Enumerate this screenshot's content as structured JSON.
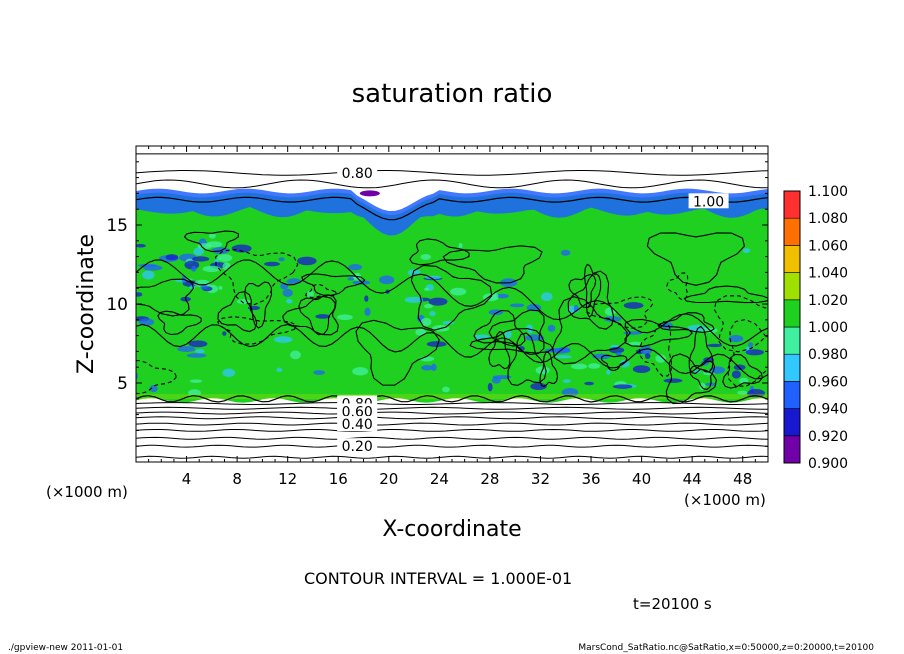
{
  "chart_data": {
    "type": "heatmap",
    "title": "saturation ratio",
    "xlabel": "X-coordinate",
    "ylabel": "Z-coordinate",
    "x_unit_left": "(×1000 m)",
    "x_unit_right": "(×1000 m)",
    "xlim": [
      0,
      50
    ],
    "ylim": [
      0,
      20
    ],
    "x_ticks": [
      4,
      8,
      12,
      16,
      20,
      24,
      28,
      32,
      36,
      40,
      44,
      48
    ],
    "y_ticks": [
      5,
      10,
      15
    ],
    "contour_labels": [
      {
        "text": "0.80",
        "x": 17.5,
        "z": 18.3
      },
      {
        "text": "1.00",
        "x": 45.3,
        "z": 16.5
      },
      {
        "text": "0.80",
        "x": 17.5,
        "z": 3.7
      },
      {
        "text": "0.60",
        "x": 17.5,
        "z": 3.2
      },
      {
        "text": "0.40",
        "x": 17.5,
        "z": 2.4
      },
      {
        "text": "0.20",
        "x": 17.5,
        "z": 1.0
      }
    ],
    "colorbar": {
      "levels": [
        0.9,
        0.92,
        0.94,
        0.96,
        0.98,
        1.0,
        1.02,
        1.04,
        1.06,
        1.08,
        1.1
      ],
      "labels": [
        "0.900",
        "0.920",
        "0.940",
        "0.960",
        "0.980",
        "1.000",
        "1.020",
        "1.040",
        "1.060",
        "1.080",
        "1.100"
      ],
      "colors": [
        "#7000a8",
        "#1818d0",
        "#2060ff",
        "#30c8ff",
        "#40f0a0",
        "#20d020",
        "#a0e000",
        "#f0c000",
        "#ff7000",
        "#ff3030",
        "#ff9090"
      ]
    },
    "contour_interval_text": "CONTOUR INTERVAL = 1.000E-01",
    "time_text": "t=20100 s"
  },
  "footer": {
    "left": "./gpview-new   2011-01-01",
    "right": "MarsCond_SatRatio.nc@SatRatio,x=0:50000,z=0:20000,t=20100"
  },
  "colors": {
    "green_field": "#20d020",
    "supersat_band": "#2040e0"
  }
}
